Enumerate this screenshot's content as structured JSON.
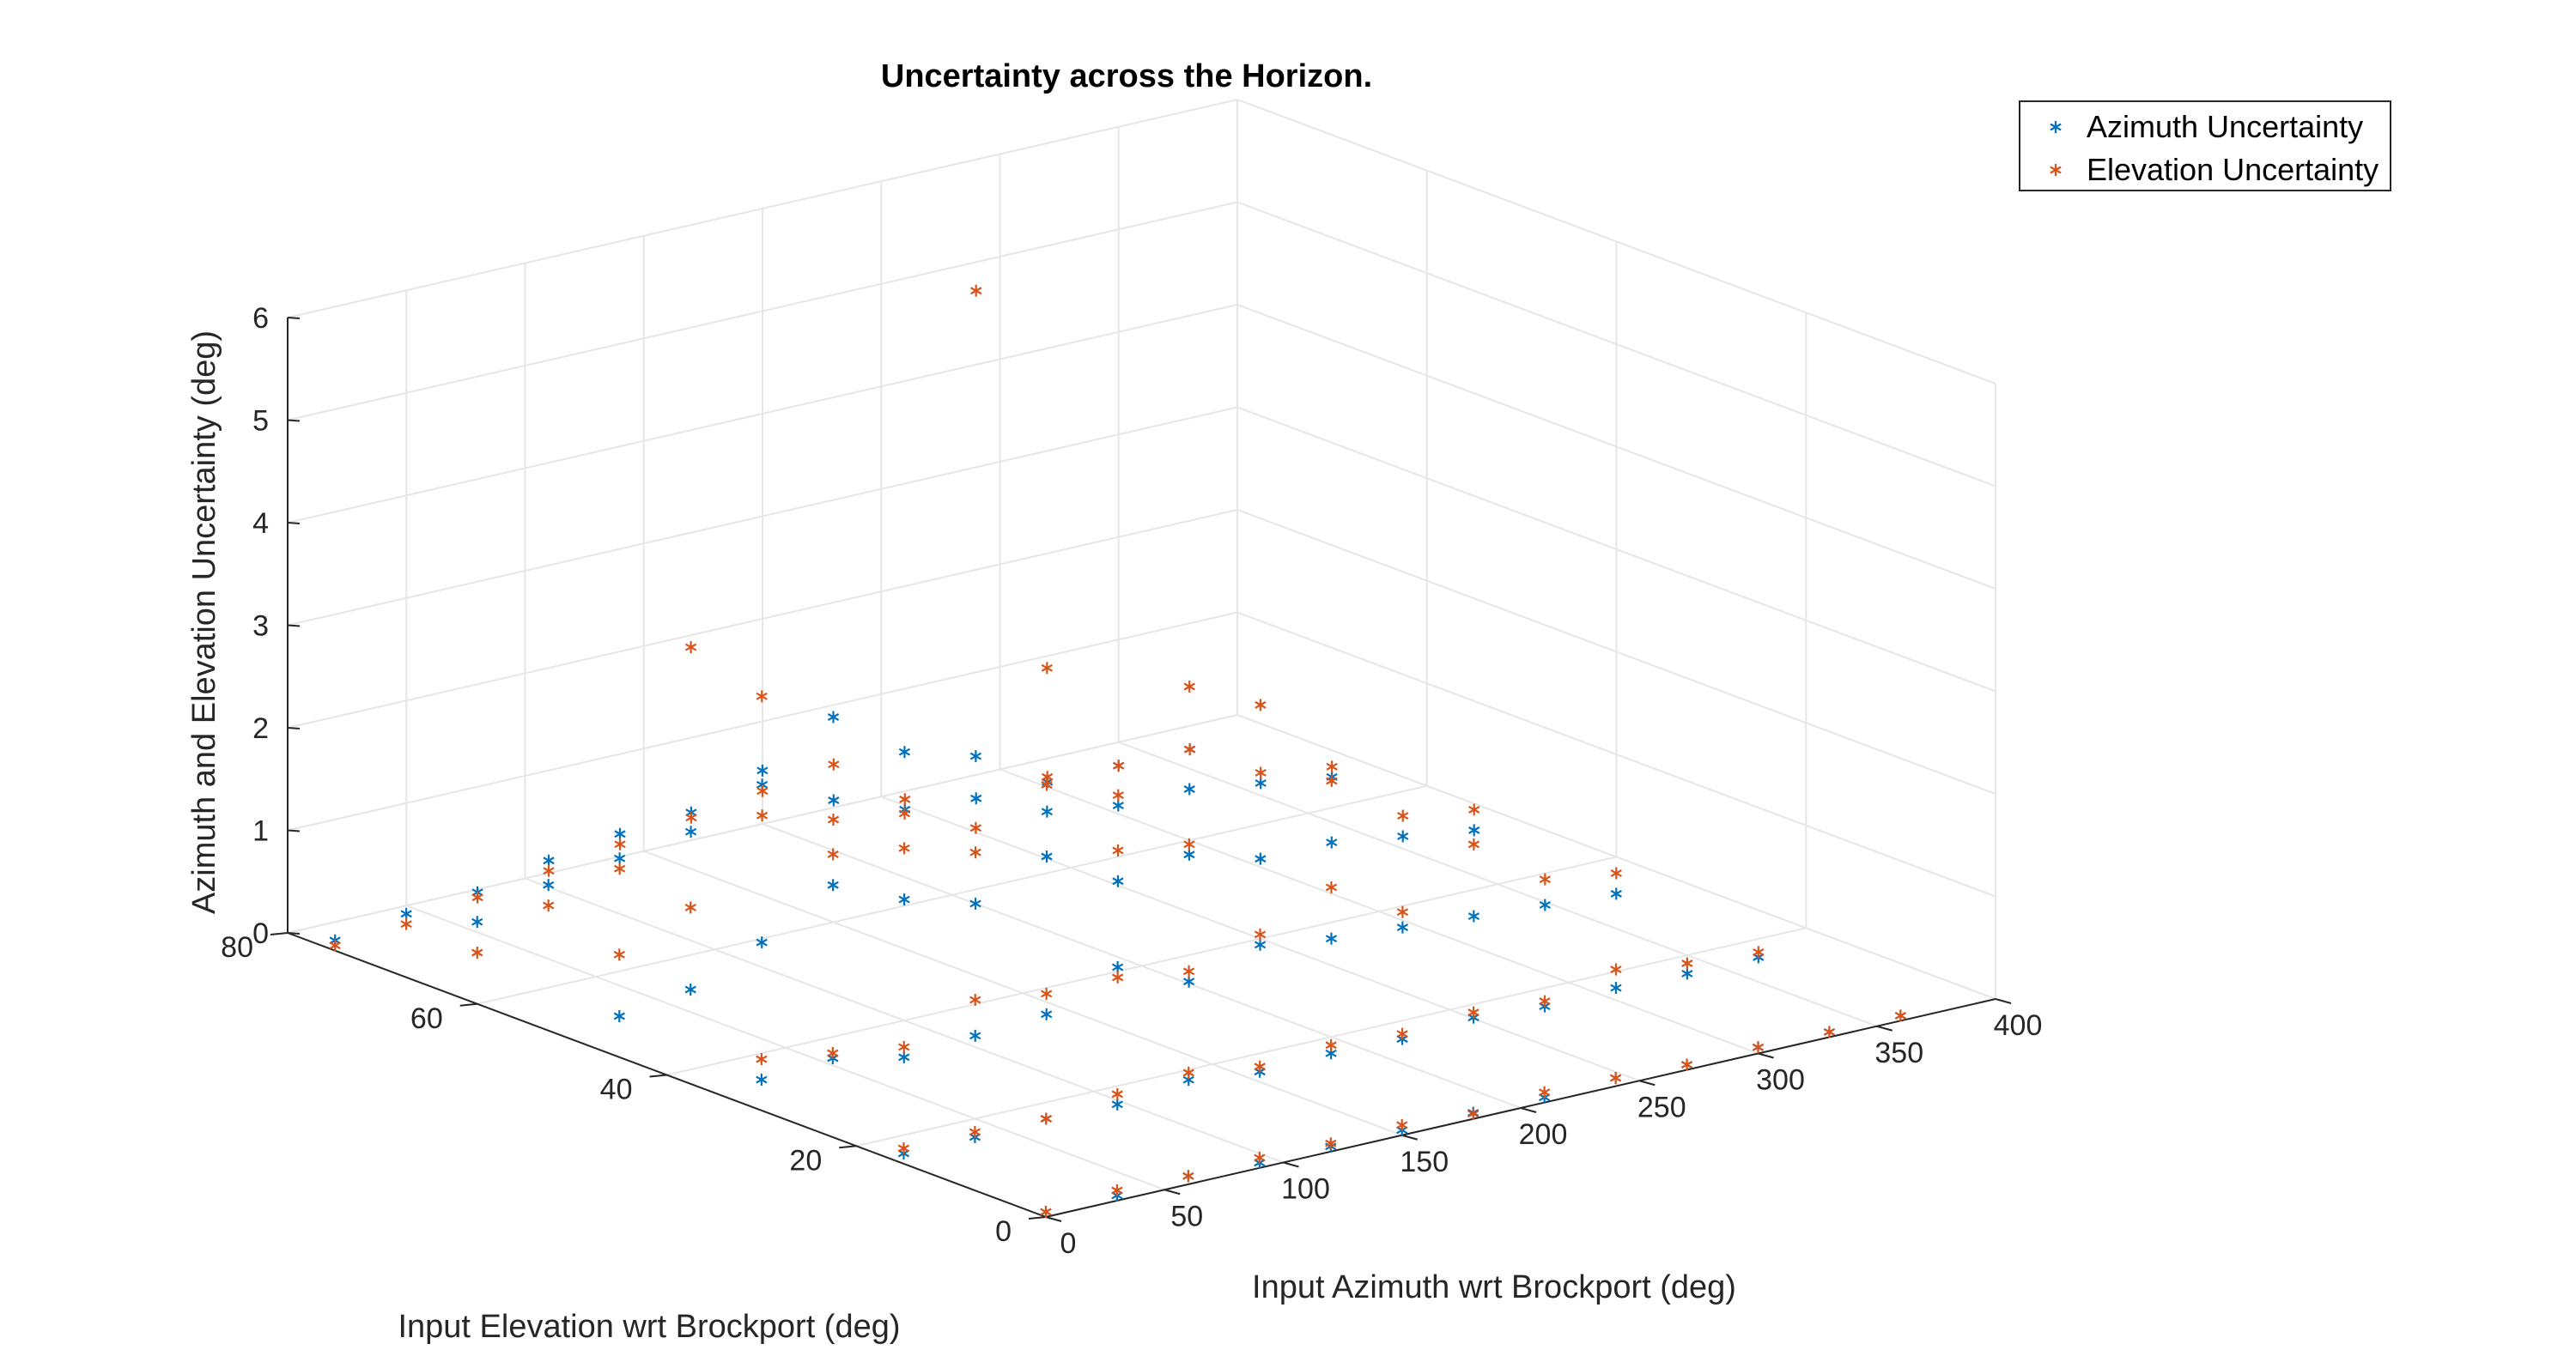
{
  "chart_data": {
    "type": "scatter",
    "title": "Uncertainty across the Horizon.",
    "xlabel": "Input Azimuth wrt Brockport (deg)",
    "ylabel": "Input Elevation wrt Brockport (deg)",
    "zlabel": "Azimuth and Elevation Uncertainty (deg)",
    "xlim": [
      0,
      400
    ],
    "ylim": [
      0,
      80
    ],
    "zlim": [
      0,
      6
    ],
    "xticks": [
      "0",
      "50",
      "100",
      "150",
      "200",
      "250",
      "300",
      "350",
      "400"
    ],
    "yticks": [
      "0",
      "20",
      "40",
      "60",
      "80"
    ],
    "zticks": [
      "0",
      "1",
      "2",
      "3",
      "4",
      "5",
      "6"
    ],
    "grid": true,
    "legend_location": "top-right",
    "colors": {
      "azimuth": "#0072BD",
      "elevation": "#D95319"
    },
    "azimuth": [
      0,
      30,
      60,
      90,
      120,
      150,
      180,
      210,
      240,
      270,
      300,
      330,
      360
    ],
    "elevation": [
      0,
      15,
      30,
      45,
      60,
      75
    ],
    "series": [
      {
        "name": "Azimuth Uncertainty",
        "marker": "*",
        "values": [
          [
            0.05,
            0.05,
            0.08,
            0.05,
            0.05,
            0.05,
            0.06,
            0.05,
            0.08,
            0.05,
            0.06,
            0.05,
            0.05
          ],
          [
            0.1,
            0.1,
            0.12,
            0.1,
            0.18,
            0.1,
            0.12,
            0.1,
            0.15,
            0.1,
            0.12,
            0.1,
            0.1
          ],
          [
            0.3,
            0.35,
            0.2,
            0.25,
            0.3,
            0.6,
            0.3,
            0.5,
            0.4,
            0.35,
            0.3,
            0.25,
            0.2
          ],
          [
            0.4,
            0.5,
            0.8,
            1.2,
            0.9,
            0.7,
            1.0,
            0.6,
            0.7,
            0.5,
            0.5,
            0.4,
            0.3
          ],
          [
            0.8,
            1.0,
            1.1,
            1.2,
            1.5,
            2.0,
            1.5,
            1.3,
            0.6,
            0.5,
            0.5,
            0.4,
            0.3
          ],
          [
            0.1,
            0.2,
            0.25,
            0.4,
            0.5,
            0.55,
            0.8,
            0.35,
            0.1,
            0.05,
            0.05,
            0.05,
            0.05
          ]
        ]
      },
      {
        "name": "Elevation Uncertainty",
        "marker": "*",
        "values": [
          [
            0.05,
            0.1,
            0.08,
            0.1,
            0.08,
            0.1,
            0.05,
            0.1,
            0.08,
            0.05,
            0.06,
            0.05,
            0.05
          ],
          [
            0.15,
            0.15,
            0.12,
            0.2,
            0.25,
            0.15,
            0.2,
            0.15,
            0.2,
            0.15,
            0.3,
            0.2,
            0.15
          ],
          [
            0.5,
            0.4,
            0.3,
            0.6,
            0.5,
            0.5,
            0.4,
            0.6,
            0.9,
            0.5,
            1.0,
            0.5,
            0.4
          ],
          [
            1.0,
            1.3,
            3.2,
            1.5,
            1.4,
            1.2,
            1.7,
            0.9,
            0.8,
            2.0,
            1.1,
            0.6,
            0.5
          ],
          [
            0.5,
            0.8,
            1.0,
            3.0,
            1.2,
            1.0,
            0.9,
            0.6,
            2.0,
            0.6,
            1.5,
            0.5,
            0.4
          ],
          [
            0.05,
            0.1,
            0.2,
            0.3,
            0.4,
            0.5,
            0.6,
            0.7,
            0.2,
            5.0,
            0.1,
            0.05,
            0.05
          ]
        ]
      }
    ]
  }
}
